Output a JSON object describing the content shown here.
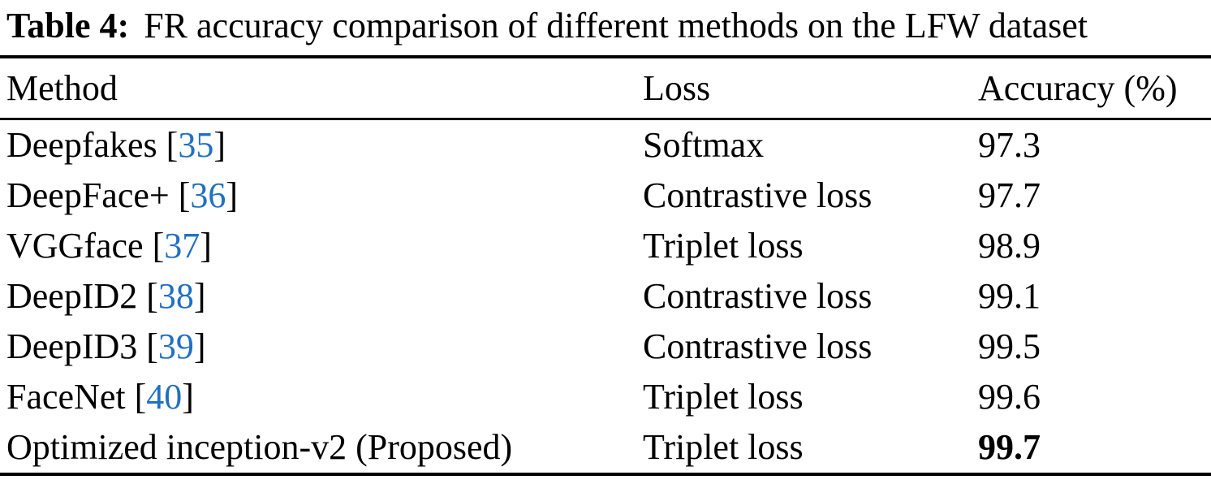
{
  "caption": {
    "label": "Table 4:",
    "text": "FR accuracy comparison of different methods on the LFW dataset"
  },
  "table": {
    "headers": {
      "method": "Method",
      "loss": "Loss",
      "accuracy": "Accuracy (%)"
    },
    "bracket_open": "[",
    "bracket_close": "]",
    "rows": [
      {
        "method": "Deepfakes",
        "citation": "35",
        "loss": "Softmax",
        "accuracy": "97.3"
      },
      {
        "method": "DeepFace+",
        "citation": "36",
        "loss": "Contrastive loss",
        "accuracy": "97.7"
      },
      {
        "method": "VGGface",
        "citation": "37",
        "loss": "Triplet loss",
        "accuracy": "98.9"
      },
      {
        "method": "DeepID2",
        "citation": "38",
        "loss": "Contrastive loss",
        "accuracy": "99.1"
      },
      {
        "method": "DeepID3",
        "citation": "39",
        "loss": "Contrastive loss",
        "accuracy": "99.5"
      },
      {
        "method": "FaceNet",
        "citation": "40",
        "loss": "Triplet loss",
        "accuracy": "99.6"
      },
      {
        "method": "Optimized inception-v2 (Proposed)",
        "citation": null,
        "loss": "Triplet loss",
        "accuracy": "99.7"
      }
    ]
  },
  "colors": {
    "citation_link": "#2170c2",
    "text": "#000000",
    "rule": "#000000",
    "background": "#ffffff"
  }
}
